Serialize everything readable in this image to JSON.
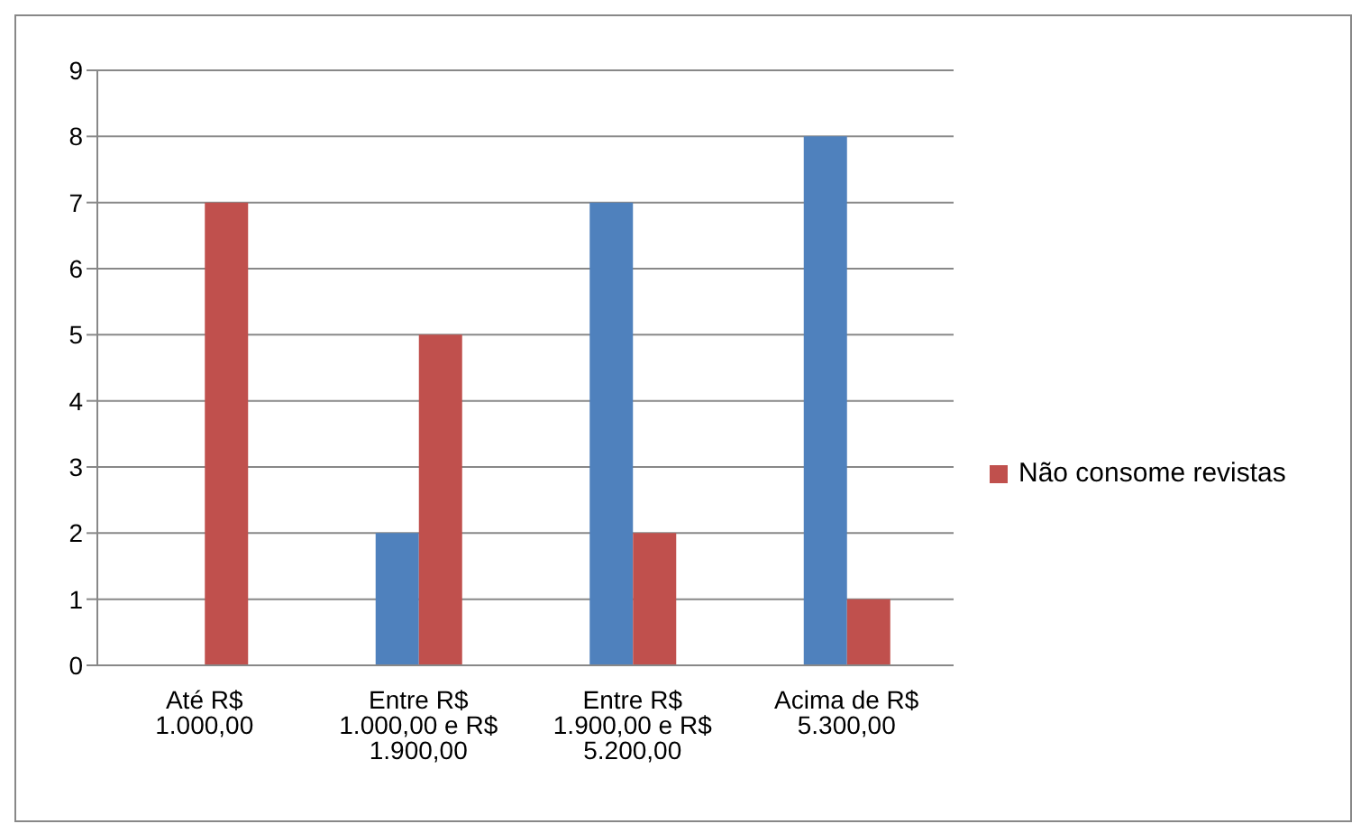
{
  "chart_data": {
    "type": "bar",
    "categories": [
      "Até R$ 1.000,00",
      "Entre R$ 1.000,00 e R$ 1.900,00",
      "Entre R$ 1.900,00 e R$ 5.200,00",
      "Acima de R$ 5.300,00"
    ],
    "series": [
      {
        "color": "#4f81bd",
        "values": [
          0,
          2,
          7,
          8
        ]
      },
      {
        "name": "Não consome revistas",
        "color": "#c0504d",
        "values": [
          7,
          5,
          2,
          1
        ]
      }
    ],
    "ylim": [
      0,
      9
    ],
    "yticks": [
      0,
      1,
      2,
      3,
      4,
      5,
      6,
      7,
      8,
      9
    ],
    "grid": "y",
    "legend": "right"
  }
}
